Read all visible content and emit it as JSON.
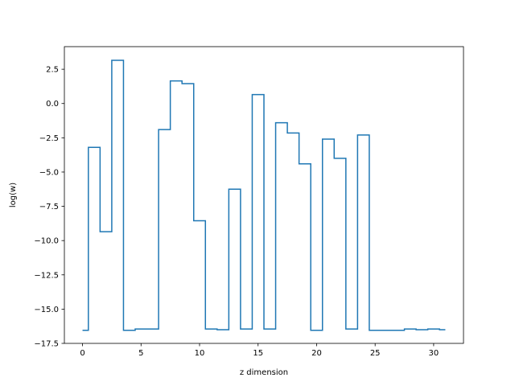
{
  "chart_data": {
    "type": "line",
    "drawstyle": "steps-mid",
    "xlabel": "z dimension",
    "ylabel": "log(w)",
    "xlim": [
      -1.55,
      32.55
    ],
    "ylim": [
      -17.5,
      4.15
    ],
    "xticks": [
      {
        "value": 0,
        "label": "0"
      },
      {
        "value": 5,
        "label": "5"
      },
      {
        "value": 10,
        "label": "10"
      },
      {
        "value": 15,
        "label": "15"
      },
      {
        "value": 20,
        "label": "20"
      },
      {
        "value": 25,
        "label": "25"
      },
      {
        "value": 30,
        "label": "30"
      }
    ],
    "yticks": [
      {
        "value": 2.5,
        "label": "2.5"
      },
      {
        "value": 0,
        "label": "0.0"
      },
      {
        "value": -2.5,
        "label": "−2.5"
      },
      {
        "value": -5,
        "label": "−5.0"
      },
      {
        "value": -7.5,
        "label": "−7.5"
      },
      {
        "value": -10,
        "label": "−10.0"
      },
      {
        "value": -12.5,
        "label": "−12.5"
      },
      {
        "value": -15,
        "label": "−15.0"
      },
      {
        "value": -17.5,
        "label": "−17.5"
      }
    ],
    "grid": false,
    "series": [
      {
        "color": "#1f77b4",
        "x": [
          0,
          1,
          2,
          3,
          4,
          5,
          6,
          7,
          8,
          9,
          10,
          11,
          12,
          13,
          14,
          15,
          16,
          17,
          18,
          19,
          20,
          21,
          22,
          23,
          24,
          25,
          26,
          27,
          28,
          29,
          30,
          31
        ],
        "y": [
          -16.55,
          -3.2,
          -9.35,
          3.15,
          -16.55,
          -16.45,
          -16.45,
          -1.9,
          1.65,
          1.45,
          -8.55,
          -16.45,
          -16.5,
          -6.25,
          -16.45,
          0.65,
          -16.45,
          -1.4,
          -2.15,
          -4.4,
          -16.55,
          -2.6,
          -4.0,
          -16.45,
          -2.3,
          -16.55,
          -16.55,
          -16.55,
          -16.45,
          -16.5,
          -16.45,
          -16.5
        ]
      }
    ]
  }
}
